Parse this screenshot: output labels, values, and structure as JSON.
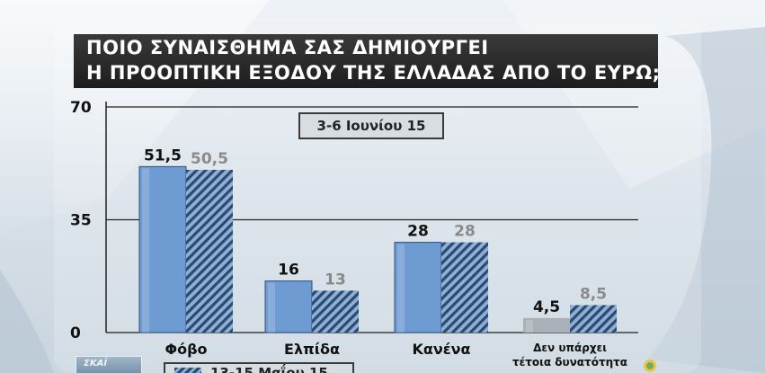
{
  "title": {
    "line1": "ΠΟΙΟ ΣΥΝΑΙΣΘΗΜΑ ΣΑΣ ΔΗΜΙΟΥΡΓΕΙ",
    "line2": "Η ΠΡΟΟΠΤΙΚΗ ΕΞΟΔΟΥ ΤΗΣ ΕΛΛΑΔΑΣ ΑΠΟ ΤΟ ΕΥΡΩ;"
  },
  "logo_left_text": "ΣΚΑΪ",
  "chart_data": {
    "type": "bar",
    "categories": [
      "Φόβο",
      "Ελπίδα",
      "Κανένα",
      "Δεν υπάρχει τέτοια δυνατότητα"
    ],
    "category_lines": [
      [
        "Φόβο"
      ],
      [
        "Ελπίδα"
      ],
      [
        "Κανένα"
      ],
      [
        "Δεν υπάρχει",
        "τέτοια δυνατότητα"
      ]
    ],
    "series": [
      {
        "name": "3-6 Ιουνίου 15",
        "values": [
          51.5,
          16,
          28,
          4.5
        ],
        "labels": [
          "51,5",
          "16",
          "28",
          "4,5"
        ]
      },
      {
        "name": "13-15 Μαΐου 15",
        "values": [
          50.5,
          13,
          28,
          8.5
        ],
        "labels": [
          "50,5",
          "13",
          "28",
          "8,5"
        ]
      }
    ],
    "ylim": [
      0,
      70
    ],
    "yticks": [
      0,
      35,
      70
    ],
    "ytick_labels": [
      "0",
      "35",
      "70"
    ],
    "grid": true,
    "colors": {
      "current": "#6e9bd2",
      "current_small": "#a9b0b8",
      "previous_stripe_dark": "#2b4a6f",
      "previous_stripe_light": "#8fb0d6",
      "label_current": "#111111",
      "label_previous": "#8a8a8a"
    }
  }
}
